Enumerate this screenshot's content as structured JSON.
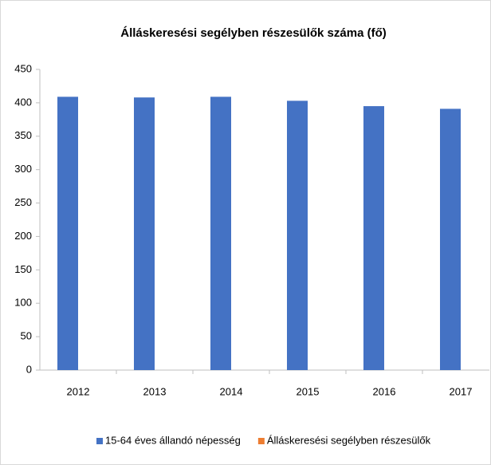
{
  "chart_data": {
    "type": "bar",
    "title": "Álláskeresési segélyben részesülők száma (fő)",
    "categories": [
      "2012",
      "2013",
      "2014",
      "2015",
      "2016",
      "2017"
    ],
    "series": [
      {
        "name": "15-64 éves állandó népesség",
        "color": "#4472c4",
        "values": [
          409,
          408,
          409,
          403,
          395,
          391
        ]
      },
      {
        "name": "Álláskeresési segélyben részesülők",
        "color": "#ed7d31",
        "values": [
          0,
          0,
          0,
          0,
          0,
          0
        ]
      }
    ],
    "ylim": [
      0,
      450
    ],
    "yticks": [
      0,
      50,
      100,
      150,
      200,
      250,
      300,
      350,
      400,
      450
    ],
    "grid": false,
    "legend": "bottom"
  }
}
